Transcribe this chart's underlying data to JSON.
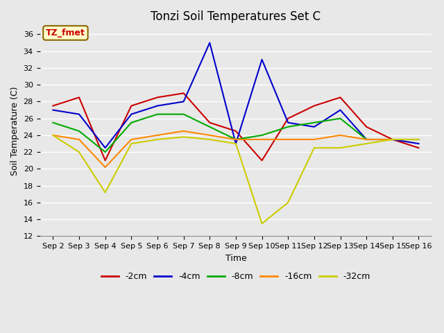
{
  "title": "Tonzi Soil Temperatures Set C",
  "xlabel": "Time",
  "ylabel": "Soil Temperature (C)",
  "annotation": "TZ_fmet",
  "ylim": [
    12,
    37
  ],
  "yticks": [
    12,
    14,
    16,
    18,
    20,
    22,
    24,
    26,
    28,
    30,
    32,
    34,
    36
  ],
  "x_labels": [
    "Sep 2",
    "Sep 3",
    "Sep 4",
    "Sep 5",
    "Sep 6",
    "Sep 7",
    "Sep 8",
    "Sep 9",
    "Sep 10",
    "Sep 11",
    "Sep 12",
    "Sep 13",
    "Sep 14",
    "Sep 15",
    "Sep 16"
  ],
  "series": {
    "-2cm": {
      "color": "#cc0000",
      "values": [
        27.5,
        28.5,
        21.0,
        27.5,
        28.5,
        29.0,
        25.5,
        24.5,
        21.0,
        26.0,
        27.5,
        28.5,
        25.0,
        23.5,
        22.5
      ]
    },
    "-4cm": {
      "color": "#0000cc",
      "values": [
        27.0,
        26.5,
        22.5,
        26.5,
        27.5,
        28.0,
        35.0,
        23.0,
        33.0,
        25.5,
        25.0,
        27.0,
        23.5,
        23.5,
        23.0
      ]
    },
    "-8cm": {
      "color": "#00aa00",
      "values": [
        25.5,
        24.5,
        22.0,
        25.5,
        26.5,
        26.5,
        25.0,
        23.5,
        24.0,
        25.0,
        25.5,
        26.0,
        23.5,
        23.5,
        23.5
      ]
    },
    "-16cm": {
      "color": "#ff8800",
      "values": [
        24.0,
        23.5,
        20.2,
        23.5,
        24.0,
        24.5,
        24.0,
        23.5,
        23.5,
        23.5,
        23.5,
        24.0,
        23.5,
        23.5,
        23.5
      ]
    },
    "-32cm": {
      "color": "#cccc00",
      "values": [
        24.0,
        22.0,
        17.2,
        23.0,
        23.5,
        23.8,
        23.5,
        23.0,
        13.5,
        16.0,
        22.5,
        22.5,
        23.0,
        23.5,
        23.5
      ]
    }
  },
  "plot_bg": "#e8e8e8",
  "fig_bg": "#e8e8e8",
  "grid_color": "#ffffff",
  "annotation_bg": "#ffffcc",
  "annotation_border": "#886600",
  "title_fontsize": 12,
  "axis_label_fontsize": 9,
  "tick_fontsize": 8
}
